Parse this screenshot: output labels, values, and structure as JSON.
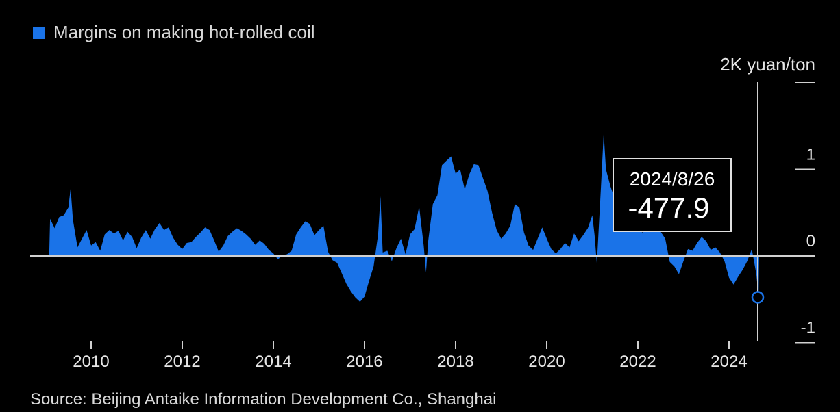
{
  "legend": {
    "label": "Margins on making hot-rolled coil",
    "color": "#1a73e8"
  },
  "source": "Source: Beijing Antaike Information Development Co., Shanghai",
  "tooltip": {
    "date": "2024/8/26",
    "value": "-477.9"
  },
  "chart_data": {
    "type": "area",
    "title": "",
    "xlabel": "",
    "ylabel": "",
    "unit_label": "2K yuan/ton",
    "y_ticks": [
      {
        "value": 2000,
        "label": ""
      },
      {
        "value": 1000,
        "label": "1"
      },
      {
        "value": 0,
        "label": "0"
      },
      {
        "value": -1000,
        "label": "-1"
      }
    ],
    "x_ticks": [
      "2010",
      "2012",
      "2014",
      "2016",
      "2018",
      "2020",
      "2022",
      "2024"
    ],
    "xlim": [
      2009.0,
      2025.0
    ],
    "ylim": [
      -1000,
      2000
    ],
    "series": [
      {
        "name": "Margins on making hot-rolled coil",
        "color": "#1a73e8",
        "points": [
          [
            2009.08,
            0
          ],
          [
            2009.1,
            430
          ],
          [
            2009.2,
            320
          ],
          [
            2009.3,
            450
          ],
          [
            2009.4,
            470
          ],
          [
            2009.5,
            560
          ],
          [
            2009.55,
            780
          ],
          [
            2009.6,
            420
          ],
          [
            2009.7,
            100
          ],
          [
            2009.8,
            200
          ],
          [
            2009.9,
            300
          ],
          [
            2010.0,
            120
          ],
          [
            2010.1,
            160
          ],
          [
            2010.2,
            60
          ],
          [
            2010.3,
            250
          ],
          [
            2010.4,
            300
          ],
          [
            2010.5,
            260
          ],
          [
            2010.6,
            290
          ],
          [
            2010.7,
            180
          ],
          [
            2010.8,
            280
          ],
          [
            2010.9,
            220
          ],
          [
            2011.0,
            90
          ],
          [
            2011.1,
            210
          ],
          [
            2011.2,
            300
          ],
          [
            2011.3,
            200
          ],
          [
            2011.4,
            310
          ],
          [
            2011.5,
            380
          ],
          [
            2011.6,
            300
          ],
          [
            2011.7,
            330
          ],
          [
            2011.8,
            210
          ],
          [
            2011.9,
            130
          ],
          [
            2012.0,
            80
          ],
          [
            2012.1,
            150
          ],
          [
            2012.2,
            160
          ],
          [
            2012.3,
            220
          ],
          [
            2012.4,
            270
          ],
          [
            2012.5,
            330
          ],
          [
            2012.6,
            300
          ],
          [
            2012.7,
            180
          ],
          [
            2012.8,
            50
          ],
          [
            2012.9,
            120
          ],
          [
            2013.0,
            230
          ],
          [
            2013.1,
            280
          ],
          [
            2013.2,
            320
          ],
          [
            2013.3,
            290
          ],
          [
            2013.4,
            250
          ],
          [
            2013.5,
            200
          ],
          [
            2013.6,
            130
          ],
          [
            2013.7,
            180
          ],
          [
            2013.8,
            140
          ],
          [
            2013.9,
            70
          ],
          [
            2014.0,
            30
          ],
          [
            2014.1,
            -40
          ],
          [
            2014.2,
            10
          ],
          [
            2014.3,
            20
          ],
          [
            2014.4,
            60
          ],
          [
            2014.5,
            250
          ],
          [
            2014.6,
            330
          ],
          [
            2014.7,
            400
          ],
          [
            2014.8,
            370
          ],
          [
            2014.9,
            240
          ],
          [
            2015.0,
            300
          ],
          [
            2015.1,
            350
          ],
          [
            2015.2,
            50
          ],
          [
            2015.3,
            -50
          ],
          [
            2015.4,
            -80
          ],
          [
            2015.5,
            -200
          ],
          [
            2015.6,
            -320
          ],
          [
            2015.7,
            -410
          ],
          [
            2015.8,
            -480
          ],
          [
            2015.9,
            -530
          ],
          [
            2016.0,
            -470
          ],
          [
            2016.1,
            -290
          ],
          [
            2016.2,
            -120
          ],
          [
            2016.3,
            250
          ],
          [
            2016.35,
            690
          ],
          [
            2016.4,
            40
          ],
          [
            2016.5,
            60
          ],
          [
            2016.6,
            -60
          ],
          [
            2016.7,
            90
          ],
          [
            2016.8,
            200
          ],
          [
            2016.9,
            20
          ],
          [
            2017.0,
            250
          ],
          [
            2017.1,
            310
          ],
          [
            2017.2,
            570
          ],
          [
            2017.3,
            120
          ],
          [
            2017.35,
            -190
          ],
          [
            2017.4,
            180
          ],
          [
            2017.5,
            600
          ],
          [
            2017.6,
            700
          ],
          [
            2017.7,
            1050
          ],
          [
            2017.8,
            1100
          ],
          [
            2017.9,
            1150
          ],
          [
            2018.0,
            950
          ],
          [
            2018.1,
            1000
          ],
          [
            2018.2,
            770
          ],
          [
            2018.3,
            940
          ],
          [
            2018.4,
            1060
          ],
          [
            2018.5,
            1050
          ],
          [
            2018.6,
            900
          ],
          [
            2018.7,
            750
          ],
          [
            2018.8,
            500
          ],
          [
            2018.9,
            300
          ],
          [
            2019.0,
            200
          ],
          [
            2019.1,
            260
          ],
          [
            2019.2,
            350
          ],
          [
            2019.3,
            600
          ],
          [
            2019.4,
            560
          ],
          [
            2019.5,
            270
          ],
          [
            2019.6,
            120
          ],
          [
            2019.7,
            70
          ],
          [
            2019.8,
            200
          ],
          [
            2019.9,
            330
          ],
          [
            2020.0,
            200
          ],
          [
            2020.1,
            80
          ],
          [
            2020.2,
            30
          ],
          [
            2020.3,
            80
          ],
          [
            2020.4,
            150
          ],
          [
            2020.5,
            100
          ],
          [
            2020.6,
            260
          ],
          [
            2020.7,
            170
          ],
          [
            2020.8,
            240
          ],
          [
            2020.9,
            320
          ],
          [
            2021.0,
            470
          ],
          [
            2021.05,
            240
          ],
          [
            2021.1,
            -90
          ],
          [
            2021.2,
            900
          ],
          [
            2021.25,
            1420
          ],
          [
            2021.3,
            1000
          ],
          [
            2021.4,
            800
          ],
          [
            2021.5,
            650
          ],
          [
            2021.6,
            620
          ],
          [
            2021.7,
            600
          ],
          [
            2021.8,
            380
          ],
          [
            2021.9,
            330
          ],
          [
            2022.0,
            310
          ],
          [
            2022.1,
            270
          ],
          [
            2022.2,
            330
          ],
          [
            2022.3,
            280
          ],
          [
            2022.4,
            480
          ],
          [
            2022.5,
            280
          ],
          [
            2022.6,
            200
          ],
          [
            2022.7,
            -70
          ],
          [
            2022.8,
            -120
          ],
          [
            2022.9,
            -210
          ],
          [
            2023.0,
            -60
          ],
          [
            2023.1,
            80
          ],
          [
            2023.2,
            60
          ],
          [
            2023.3,
            150
          ],
          [
            2023.4,
            220
          ],
          [
            2023.5,
            170
          ],
          [
            2023.6,
            70
          ],
          [
            2023.7,
            100
          ],
          [
            2023.8,
            40
          ],
          [
            2023.9,
            -60
          ],
          [
            2024.0,
            -250
          ],
          [
            2024.1,
            -330
          ],
          [
            2024.2,
            -240
          ],
          [
            2024.3,
            -160
          ],
          [
            2024.4,
            -60
          ],
          [
            2024.5,
            80
          ],
          [
            2024.6,
            -210
          ],
          [
            2024.65,
            -478
          ],
          [
            2024.66,
            0
          ]
        ]
      }
    ],
    "last_point": {
      "x": 2024.65,
      "y": -477.9
    },
    "grid": false,
    "legend_position": "top-left"
  }
}
